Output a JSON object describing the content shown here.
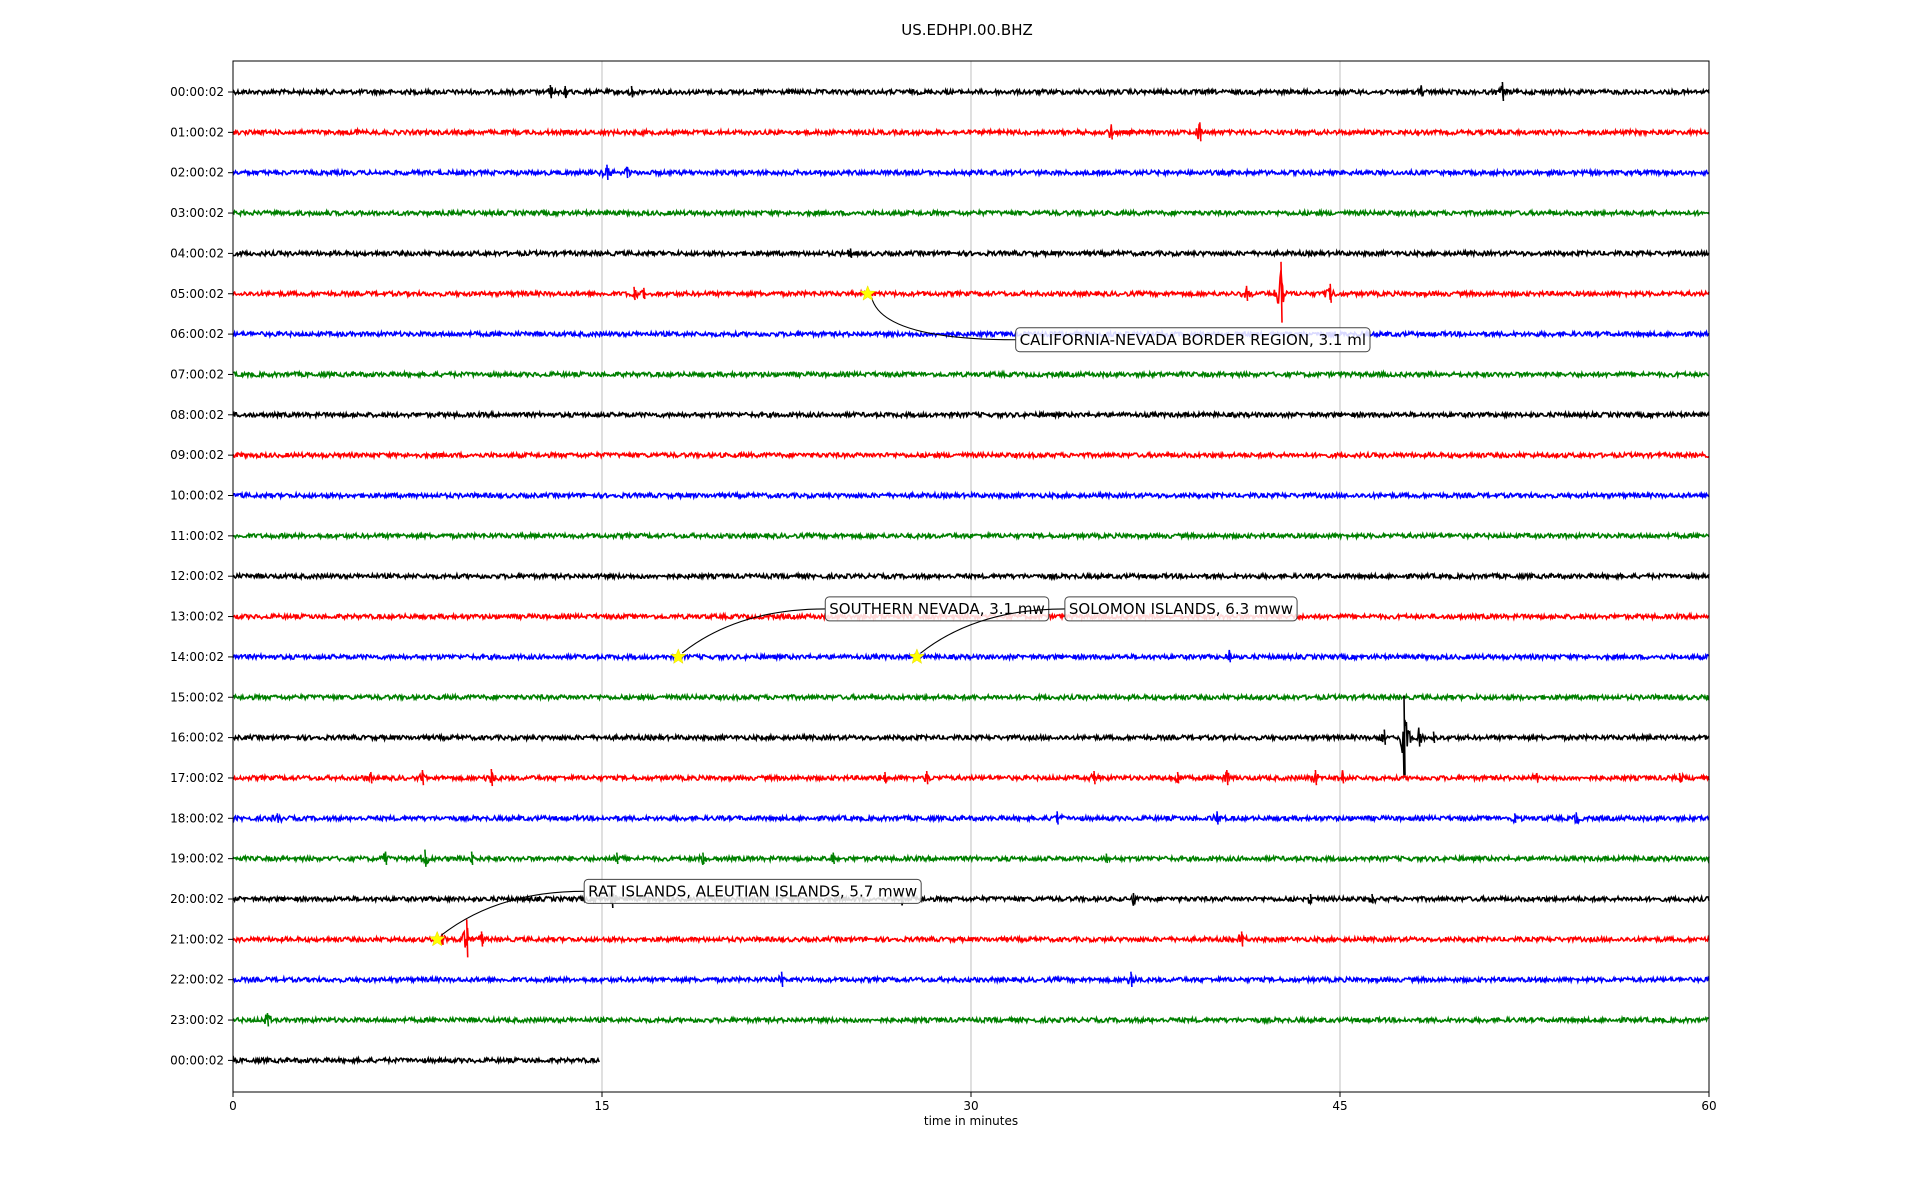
{
  "chart_data": {
    "type": "line",
    "title": "US.EDHPI.00.BHZ",
    "xlabel": "time in minutes",
    "ylabel": "",
    "xlim": [
      0,
      60
    ],
    "xticks": [
      0,
      15,
      30,
      45,
      60
    ],
    "grid": "vertical",
    "colors": [
      "#000000",
      "#ff0000",
      "#0000ff",
      "#008000"
    ],
    "rows": [
      {
        "label": "00:00:02",
        "start": 0,
        "end": 60,
        "events": [
          [
            12.9,
            7
          ],
          [
            13.5,
            6
          ],
          [
            16.2,
            6
          ],
          [
            48.3,
            5
          ],
          [
            51.6,
            10
          ]
        ]
      },
      {
        "label": "01:00:02",
        "start": 0,
        "end": 60,
        "events": [
          [
            5.0,
            3
          ],
          [
            35.7,
            8
          ],
          [
            39.3,
            10
          ],
          [
            51.5,
            3
          ]
        ]
      },
      {
        "label": "02:00:02",
        "start": 0,
        "end": 60,
        "events": [
          [
            15.2,
            8
          ],
          [
            16.0,
            6
          ]
        ]
      },
      {
        "label": "03:00:02",
        "start": 0,
        "end": 60,
        "events": []
      },
      {
        "label": "04:00:02",
        "start": 0,
        "end": 60,
        "events": [
          [
            25.1,
            5
          ]
        ]
      },
      {
        "label": "05:00:02",
        "start": 0,
        "end": 60,
        "events": [
          [
            16.3,
            7
          ],
          [
            16.7,
            6
          ],
          [
            41.2,
            8
          ],
          [
            42.6,
            32
          ],
          [
            44.6,
            10
          ]
        ]
      },
      {
        "label": "06:00:02",
        "start": 0,
        "end": 60,
        "events": []
      },
      {
        "label": "07:00:02",
        "start": 0,
        "end": 60,
        "events": []
      },
      {
        "label": "08:00:02",
        "start": 0,
        "end": 60,
        "events": []
      },
      {
        "label": "09:00:02",
        "start": 0,
        "end": 60,
        "events": []
      },
      {
        "label": "10:00:02",
        "start": 0,
        "end": 60,
        "events": []
      },
      {
        "label": "11:00:02",
        "start": 0,
        "end": 60,
        "events": []
      },
      {
        "label": "12:00:02",
        "start": 0,
        "end": 60,
        "events": []
      },
      {
        "label": "13:00:02",
        "start": 0,
        "end": 60,
        "events": []
      },
      {
        "label": "14:00:02",
        "start": 0,
        "end": 60,
        "events": [
          [
            40.5,
            6
          ]
        ]
      },
      {
        "label": "15:00:02",
        "start": 0,
        "end": 60,
        "events": []
      },
      {
        "label": "16:00:02",
        "start": 0,
        "end": 60,
        "events": [
          [
            46.8,
            8
          ],
          [
            47.6,
            42
          ],
          [
            48.2,
            10
          ],
          [
            48.8,
            6
          ]
        ]
      },
      {
        "label": "17:00:02",
        "start": 0,
        "end": 60,
        "events": [
          [
            5.6,
            6
          ],
          [
            7.7,
            8
          ],
          [
            10.5,
            9
          ],
          [
            26.5,
            6
          ],
          [
            28.2,
            7
          ],
          [
            35.0,
            7
          ],
          [
            38.4,
            6
          ],
          [
            40.4,
            8
          ],
          [
            44.0,
            8
          ],
          [
            45.1,
            6
          ],
          [
            53.0,
            5
          ],
          [
            58.8,
            5
          ]
        ]
      },
      {
        "label": "18:00:02",
        "start": 0,
        "end": 60,
        "events": [
          [
            1.8,
            5
          ],
          [
            33.5,
            7
          ],
          [
            40.0,
            7
          ],
          [
            52.1,
            5
          ],
          [
            54.6,
            6
          ]
        ]
      },
      {
        "label": "19:00:02",
        "start": 0,
        "end": 60,
        "events": [
          [
            6.2,
            7
          ],
          [
            7.8,
            9
          ],
          [
            9.7,
            7
          ],
          [
            15.6,
            6
          ],
          [
            19.1,
            6
          ],
          [
            24.4,
            6
          ],
          [
            35.5,
            5
          ]
        ]
      },
      {
        "label": "20:00:02",
        "start": 0,
        "end": 60,
        "events": [
          [
            15.4,
            10
          ],
          [
            27.2,
            5
          ],
          [
            36.6,
            6
          ],
          [
            43.8,
            5
          ],
          [
            46.3,
            5
          ]
        ]
      },
      {
        "label": "21:00:02",
        "start": 0,
        "end": 60,
        "events": [
          [
            8.5,
            6
          ],
          [
            9.5,
            20
          ],
          [
            10.1,
            8
          ],
          [
            41.0,
            8
          ]
        ]
      },
      {
        "label": "22:00:02",
        "start": 0,
        "end": 60,
        "events": [
          [
            22.3,
            8
          ],
          [
            36.5,
            8
          ]
        ]
      },
      {
        "label": "23:00:02",
        "start": 0,
        "end": 60,
        "events": [
          [
            1.4,
            7
          ]
        ]
      },
      {
        "label": "00:00:02",
        "start": 0,
        "end": 14.9,
        "events": []
      }
    ],
    "annotations": [
      {
        "text": "CALIFORNIA-NEVADA BORDER REGION, 3.1 ml",
        "row": 5,
        "x": 25.8
      },
      {
        "text": "SOUTHERN NEVADA, 3.1 mw",
        "row": 14,
        "x": 18.1
      },
      {
        "text": "SOLOMON ISLANDS, 6.3 mww",
        "row": 14,
        "x": 27.8
      },
      {
        "text": "RAT ISLANDS, ALEUTIAN ISLANDS, 5.7 mww",
        "row": 21,
        "x": 8.3
      }
    ]
  }
}
